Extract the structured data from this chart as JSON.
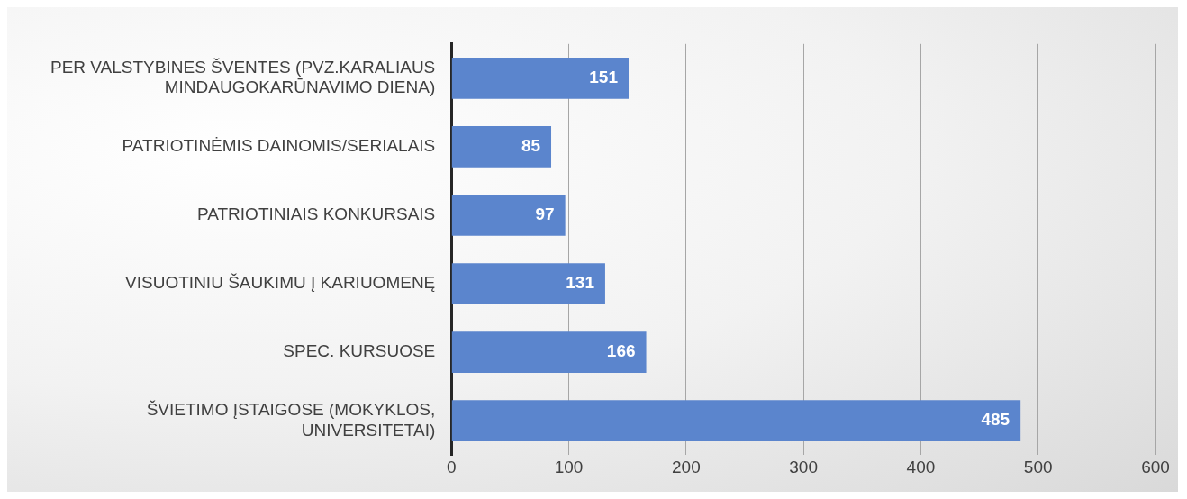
{
  "chart_data": {
    "type": "bar",
    "orientation": "horizontal",
    "categories": [
      "PER VALSTYBINES ŠVENTES (PVZ.KARALIAUS MINDAUGOKARŪNAVIMO DIENA)",
      "PATRIOTINĖMIS DAINOMIS/SERIALAIS",
      "PATRIOTINIAIS KONKURSAIS",
      "VISUOTINIU ŠAUKIMU Į KARIUOMENĘ",
      "SPEC. KURSUOSE",
      "ŠVIETIMO ĮSTAIGOSE (MOKYKLOS, UNIVERSITETAI)"
    ],
    "values": [
      151,
      85,
      97,
      131,
      166,
      485
    ],
    "color": "#5b85cd",
    "xlim": [
      0,
      600
    ],
    "xticks": [
      0,
      100,
      200,
      300,
      400,
      500,
      600
    ],
    "grid": "x",
    "legend": false,
    "data_labels": true
  }
}
